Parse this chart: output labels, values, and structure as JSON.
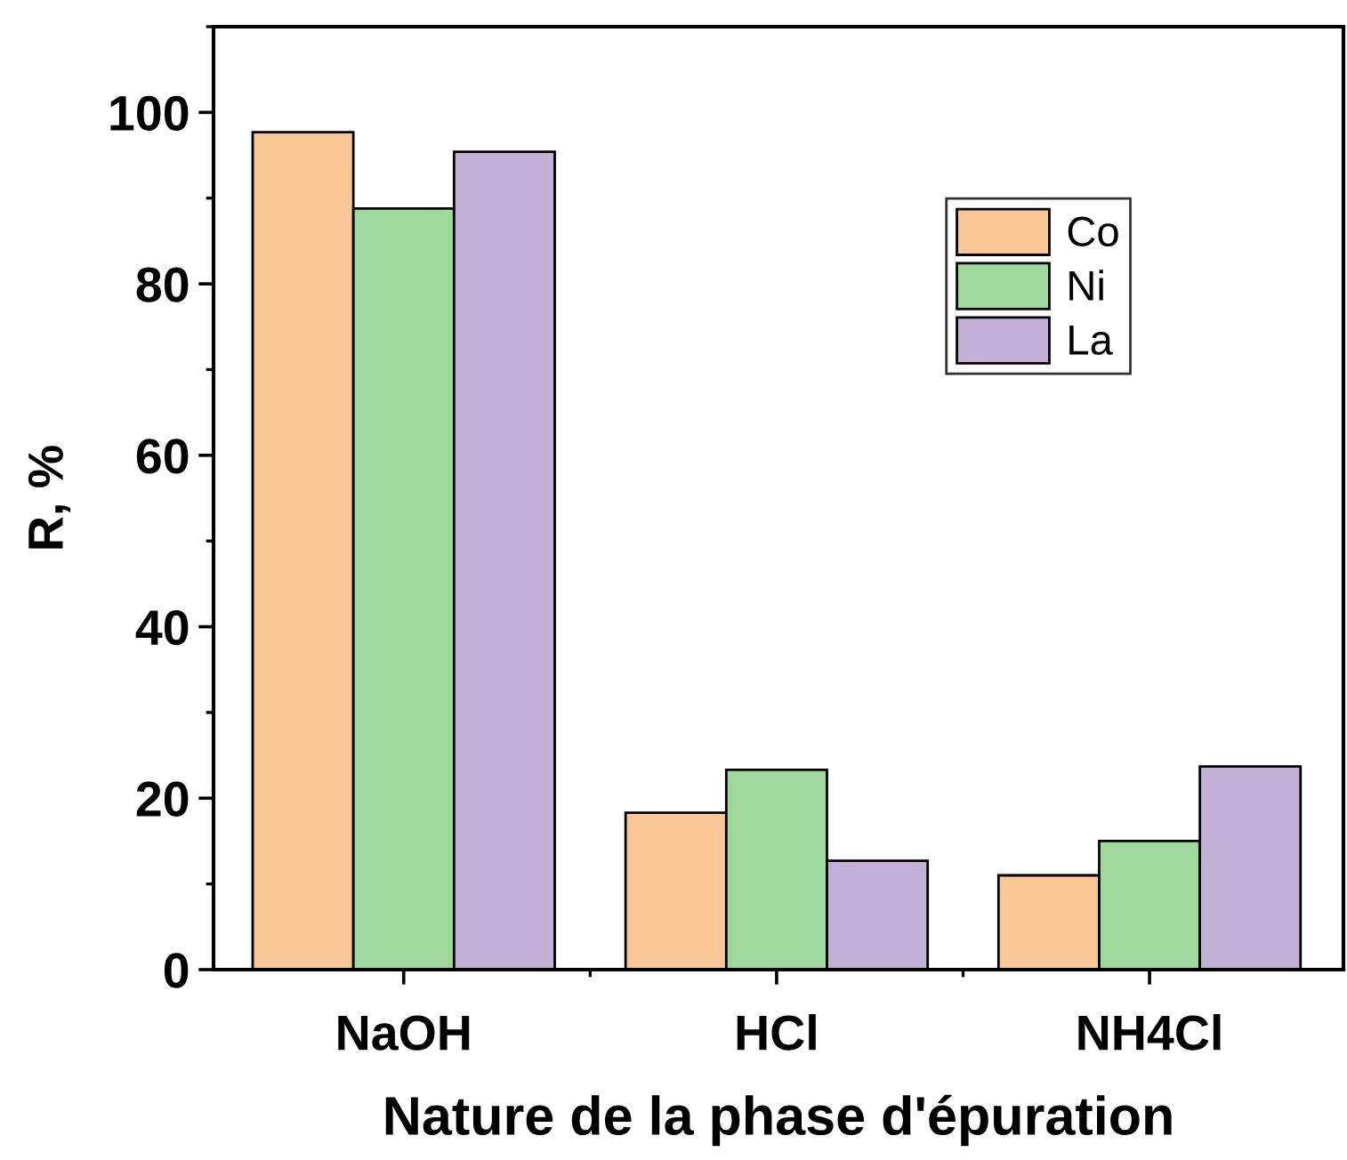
{
  "chart_data": {
    "type": "bar",
    "xlabel": "Nature de la phase d'épuration",
    "ylabel": "R, %",
    "categories": [
      "NaOH",
      "HCl",
      "NH4Cl"
    ],
    "series": [
      {
        "name": "Co",
        "color": "#f9c795",
        "values": [
          97.7,
          18.3,
          11.0
        ]
      },
      {
        "name": "Ni",
        "color": "#9fd89c",
        "values": [
          88.8,
          23.3,
          15.0
        ]
      },
      {
        "name": "La",
        "color": "#c2b0d6",
        "values": [
          95.4,
          12.7,
          23.7
        ]
      }
    ],
    "ylim": [
      0,
      110
    ],
    "yticks": [
      0,
      20,
      40,
      60,
      80,
      100
    ],
    "grid": false,
    "legend": "top right"
  }
}
